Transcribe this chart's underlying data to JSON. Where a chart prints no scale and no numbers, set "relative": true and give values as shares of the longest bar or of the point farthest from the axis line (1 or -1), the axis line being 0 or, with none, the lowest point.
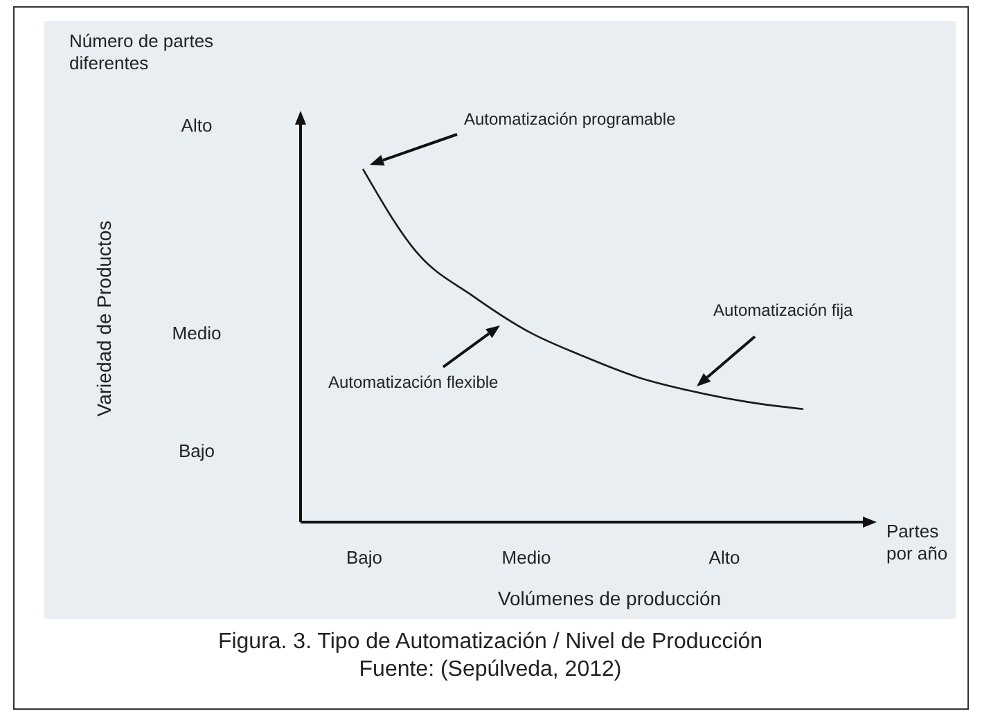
{
  "chart_data": {
    "type": "line",
    "relative": true,
    "title": "Figura. 3. Tipo de Automatización / Nivel de Producción",
    "xlabel": "Volúmenes de producción",
    "categories": [
      null,
      null,
      null,
      null,
      null,
      null,
      null,
      null,
      null
    ],
    "series": [
      {
        "color": "#1a1a1a",
        "values": [
          1,
          0.76,
          0.64,
          0.54,
          0.47,
          0.41,
          0.37,
          0.34,
          0.32
        ]
      }
    ],
    "marker": "none",
    "line_style": "solid",
    "annotations": [
      "Número de partes diferentes",
      "Partes por año",
      "Variedad de  Productos",
      "Alto",
      "Medio",
      "Bajo",
      "Bajo",
      "Medio",
      "Alto",
      "Automatización programable",
      "Automatización flexible",
      "Automatización fija",
      "Fuente: (Sepúlveda, 2012)"
    ]
  }
}
